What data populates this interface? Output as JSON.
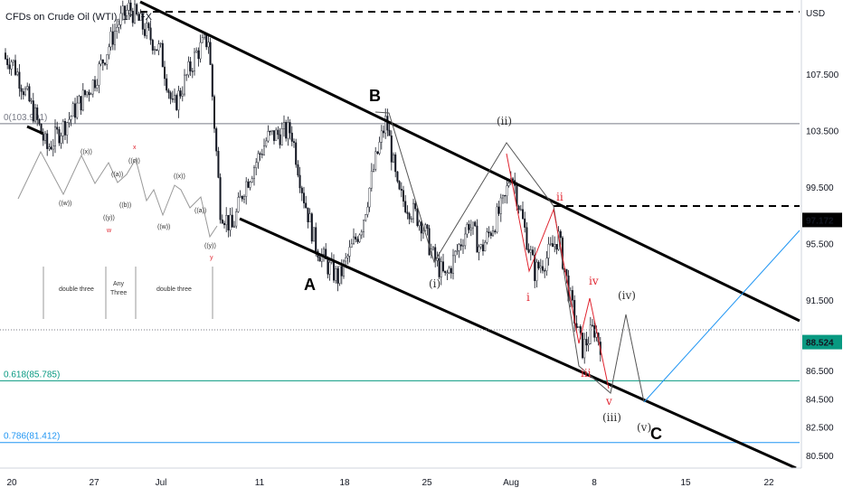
{
  "chart_data": {
    "type": "candlestick",
    "title": "CFDs on Crude Oil (WTI), 1h, FX",
    "currency": "USD",
    "y_axis_ticks": [
      "107.500",
      "103.500",
      "99.500",
      "95.500",
      "91.500",
      "86.500",
      "84.500",
      "82.500",
      "80.500"
    ],
    "y_axis_tick_values": [
      107.5,
      103.5,
      99.5,
      95.5,
      91.5,
      86.5,
      84.5,
      82.5,
      80.5
    ],
    "x_axis_ticks": [
      "20",
      "27",
      "Jul",
      "11",
      "18",
      "25",
      "Aug",
      "8",
      "15",
      "22"
    ],
    "price_labels": [
      {
        "value": 97.172,
        "text": "97.172",
        "bg": "#000000",
        "fg": "#ffffff"
      },
      {
        "value": 88.524,
        "text": "88.524",
        "bg": "#089981",
        "fg": "#ffffff"
      }
    ],
    "horizontal_levels": [
      {
        "value": 103.991,
        "label": "0(103.991)",
        "color": "#787b86"
      },
      {
        "value": 85.785,
        "label": "0.618(85.785)",
        "color": "#089981"
      },
      {
        "value": 81.412,
        "label": "0.786(81.412)",
        "color": "#2196f3"
      }
    ],
    "price_path": [
      {
        "x": "Jun 17",
        "y": 109.0
      },
      {
        "x": "Jun 20",
        "y": 108.5
      },
      {
        "x": "Jun 22",
        "y": 104.5
      },
      {
        "x": "Jun 23",
        "y": 102.2
      },
      {
        "x": "Jun 25",
        "y": 104.5
      },
      {
        "x": "Jun 27",
        "y": 107.0
      },
      {
        "x": "Jun 29",
        "y": 111.0
      },
      {
        "x": "Jun 30",
        "y": 112.2
      },
      {
        "x": "Jul 1",
        "y": 109.0
      },
      {
        "x": "Jul 2",
        "y": 105.0
      },
      {
        "x": "Jul 4",
        "y": 109.0
      },
      {
        "x": "Jul 5",
        "y": 110.0
      },
      {
        "x": "Jul 6",
        "y": 98.0
      },
      {
        "x": "Jul 7",
        "y": 96.5
      },
      {
        "x": "Jul 8",
        "y": 99.5
      },
      {
        "x": "Jul 10",
        "y": 103.0
      },
      {
        "x": "Jul 12",
        "y": 103.5
      },
      {
        "x": "Jul 13",
        "y": 99.0
      },
      {
        "x": "Jul 14",
        "y": 95.5
      },
      {
        "x": "Jul 15",
        "y": 94.0
      },
      {
        "x": "Jul 16",
        "y": 93.0
      },
      {
        "x": "Jul 18",
        "y": 97.0
      },
      {
        "x": "Jul 19",
        "y": 101.0
      },
      {
        "x": "Jul 20",
        "y": 104.3
      },
      {
        "x": "Jul 21",
        "y": 99.0
      },
      {
        "x": "Jul 23",
        "y": 97.0
      },
      {
        "x": "Jul 24",
        "y": 94.5
      },
      {
        "x": "Jul 25",
        "y": 93.0
      },
      {
        "x": "Jul 27",
        "y": 97.0
      },
      {
        "x": "Jul 28",
        "y": 95.0
      },
      {
        "x": "Jul 30",
        "y": 98.5
      },
      {
        "x": "Aug 1",
        "y": 100.8
      },
      {
        "x": "Aug 2",
        "y": 97.0
      },
      {
        "x": "Aug 3",
        "y": 93.5
      },
      {
        "x": "Aug 4",
        "y": 94.5
      },
      {
        "x": "Aug 5",
        "y": 96.0
      },
      {
        "x": "Aug 6",
        "y": 91.5
      },
      {
        "x": "Aug 7",
        "y": 88.0
      },
      {
        "x": "Aug 8",
        "y": 89.5
      },
      {
        "x": "Aug 9",
        "y": 87.5
      }
    ],
    "candlestick_note": "hourly candles",
    "channel": {
      "color": "#000000"
    },
    "forecast_path_color": "#2196f3",
    "legend": "none",
    "grid": false
  },
  "annotations": {
    "B": "B",
    "A": "A",
    "C": "C",
    "ii_paren": "(ii)",
    "i_paren": "(i)",
    "iii_paren": "(iii)",
    "iv_paren": "(iv)",
    "v_paren": "(v)",
    "ii_red": "ii",
    "i_red": "i",
    "iii_red": "iii",
    "iv_red": "iv",
    "v_red": "v"
  },
  "schematic": {
    "labels": [
      "((x))",
      "((c))",
      "((a))",
      "((w))",
      "((y))",
      "((b))",
      "((x))",
      "((w))",
      "((y))",
      "((a))"
    ],
    "x_red": "x",
    "w_red": "w",
    "y_red": "y",
    "box1": "double three",
    "box2_line1": "Any",
    "box2_line2": "Three",
    "box3": "double three"
  },
  "colors": {
    "price": "#131722",
    "red_wave": "#e0242f",
    "dark_wave": "#555555",
    "channel": "#000000",
    "fib_green": "#089981",
    "fib_blue": "#2196f3",
    "grey_level": "#787b86"
  }
}
